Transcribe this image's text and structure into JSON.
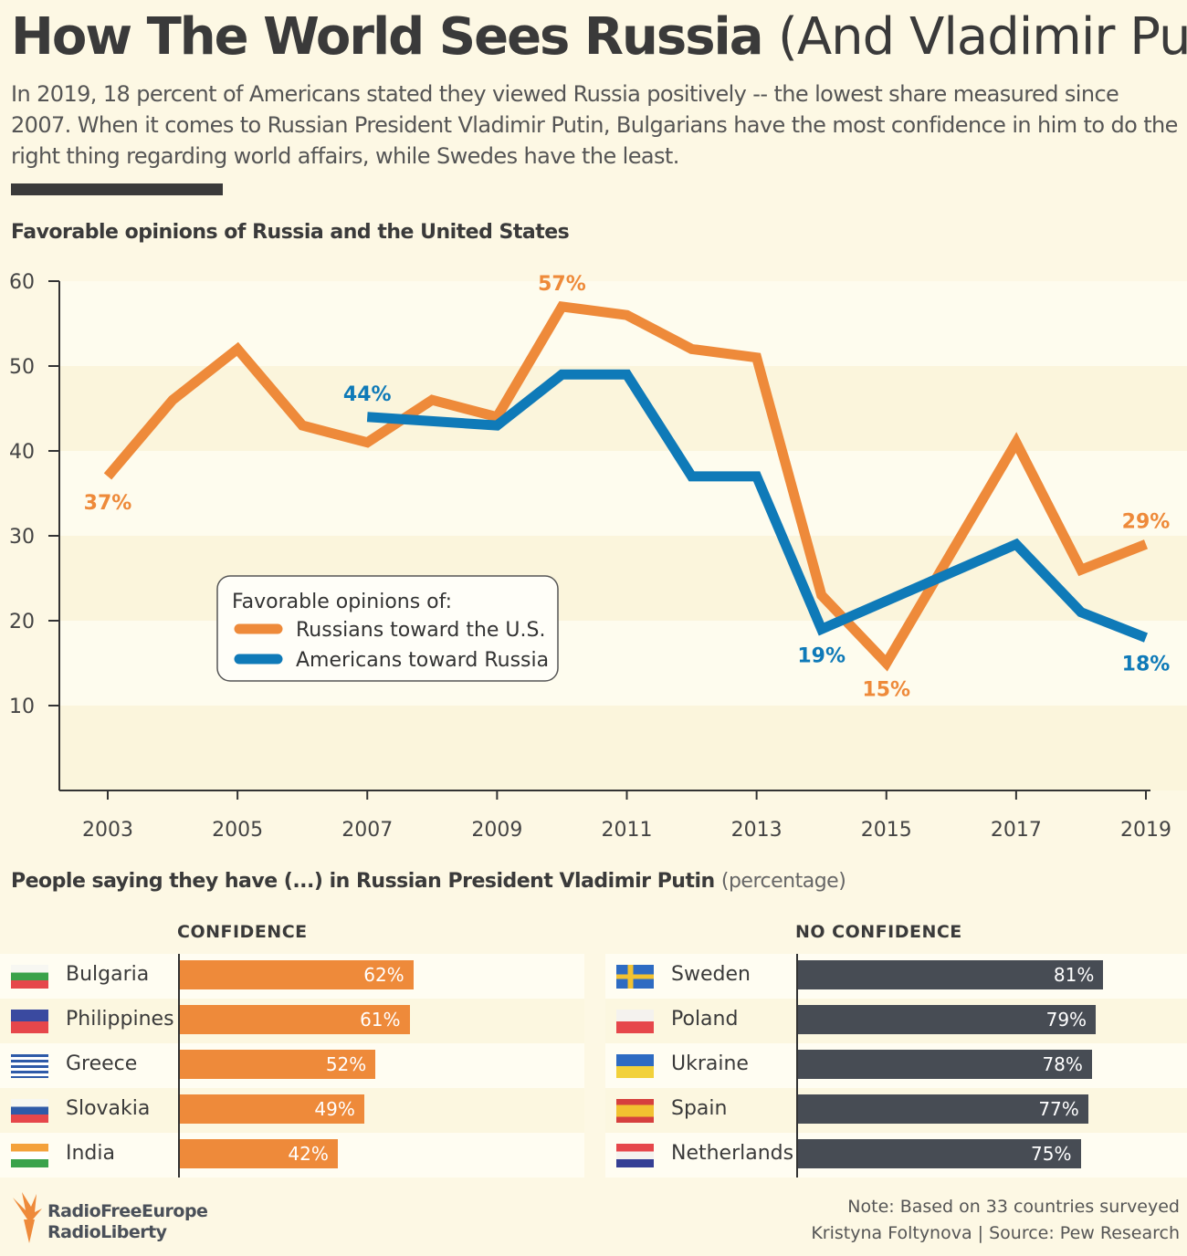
{
  "header": {
    "title_bold": "How The World Sees Russia",
    "title_light": "(And Vladimir Putin)",
    "intro": "In 2019, 18 percent of Americans stated they viewed Russia positively -- the lowest share measured since 2007. When it comes to Russian President Vladimir Putin, Bulgarians have the most confidence in him to do the right thing regarding world affairs, while Swedes have the least."
  },
  "line_section_title": "Favorable opinions of Russia and the United States",
  "bar_section": {
    "title_bold": "People saying they have (...) in Russian President Vladimir Putin",
    "title_light": "(percentage)"
  },
  "colors": {
    "orange": "#ee8a3a",
    "blue": "#0f7ab8",
    "dark": "#474c54"
  },
  "chart_data": [
    {
      "type": "line",
      "title": "Favorable opinions of Russia and the United States",
      "ylim": [
        0,
        60
      ],
      "yticks": [
        10,
        20,
        30,
        40,
        50,
        60
      ],
      "xticks": [
        2003,
        2005,
        2007,
        2009,
        2011,
        2013,
        2015,
        2017,
        2019
      ],
      "xlim": [
        2003,
        2019
      ],
      "grid": "horizontal bands",
      "legend": {
        "title": "Favorable opinions of:",
        "placement": "center-left"
      },
      "series": [
        {
          "name": "Russians toward the U.S.",
          "color": "#ee8a3a",
          "x": [
            2003,
            2004,
            2005,
            2006,
            2007,
            2008,
            2009,
            2010,
            2011,
            2012,
            2013,
            2014,
            2015,
            2017,
            2018,
            2019
          ],
          "y": [
            37,
            46,
            52,
            43,
            41,
            46,
            44,
            57,
            56,
            52,
            51,
            23,
            15,
            41,
            26,
            29
          ]
        },
        {
          "name": "Americans toward Russia",
          "color": "#0f7ab8",
          "x": [
            2007,
            2009,
            2010,
            2011,
            2012,
            2013,
            2014,
            2017,
            2018,
            2019
          ],
          "y": [
            44,
            43,
            49,
            49,
            37,
            37,
            19,
            29,
            21,
            18
          ]
        }
      ],
      "annotations": [
        {
          "series": 0,
          "x": 2003,
          "text": "37%",
          "placement": "below"
        },
        {
          "series": 1,
          "x": 2007,
          "text": "44%",
          "placement": "above"
        },
        {
          "series": 0,
          "x": 2010,
          "text": "57%",
          "placement": "above"
        },
        {
          "series": 1,
          "x": 2014,
          "text": "19%",
          "placement": "below"
        },
        {
          "series": 0,
          "x": 2015,
          "text": "15%",
          "placement": "below"
        },
        {
          "series": 0,
          "x": 2019,
          "text": "29%",
          "placement": "above"
        },
        {
          "series": 1,
          "x": 2019,
          "text": "18%",
          "placement": "below"
        }
      ]
    },
    {
      "type": "bar",
      "title": "CONFIDENCE",
      "color": "#ee8a3a",
      "categories": [
        "Bulgaria",
        "Philippines",
        "Greece",
        "Slovakia",
        "India"
      ],
      "values": [
        62,
        61,
        52,
        49,
        42
      ],
      "labels": [
        "62%",
        "61%",
        "52%",
        "49%",
        "42%"
      ]
    },
    {
      "type": "bar",
      "title": "NO CONFIDENCE",
      "color": "#474c54",
      "categories": [
        "Sweden",
        "Poland",
        "Ukraine",
        "Spain",
        "Netherlands"
      ],
      "values": [
        81,
        79,
        78,
        77,
        75
      ],
      "labels": [
        "81%",
        "79%",
        "78%",
        "77%",
        "75%"
      ]
    }
  ],
  "footer": {
    "logo_line1": "RadioFreeEurope",
    "logo_line2": "RadioLiberty",
    "note": "Note: Based on 33 countries surveyed",
    "credit": "Kristyna Foltynova | Source: Pew Research"
  }
}
